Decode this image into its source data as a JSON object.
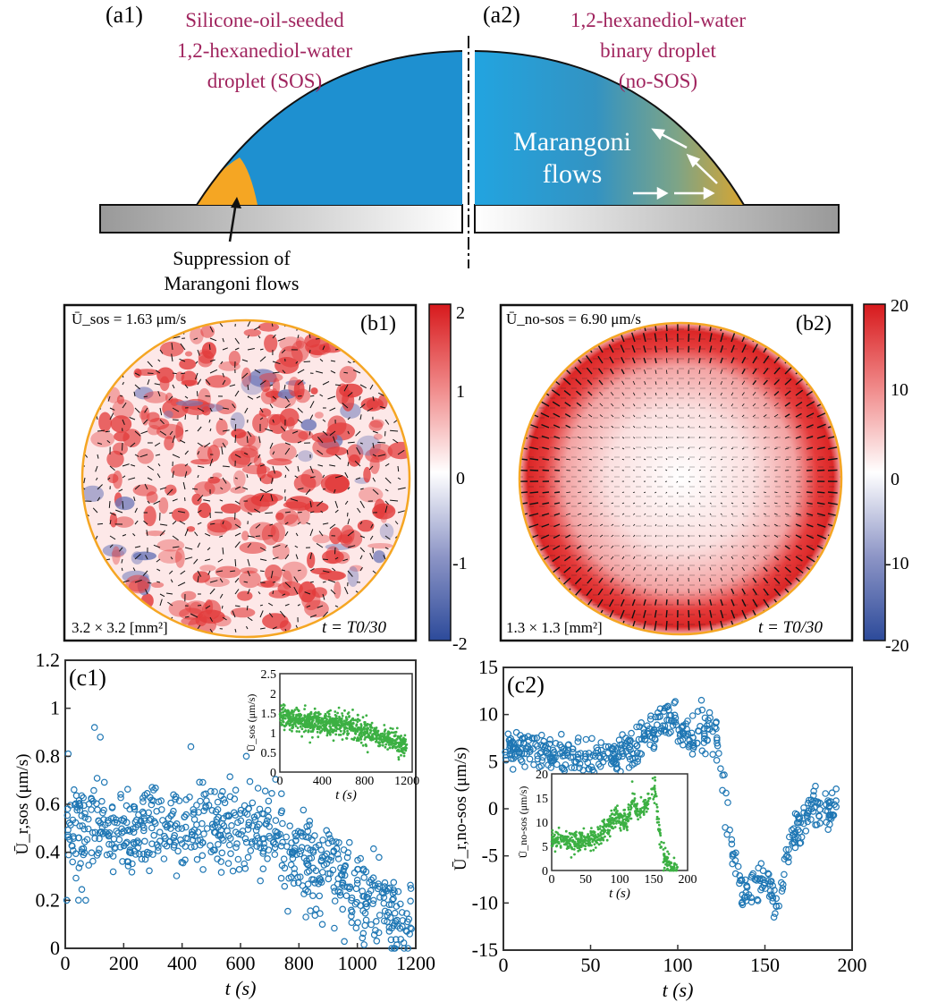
{
  "panel_a": {
    "label_a1": "(a1)",
    "label_a2": "(a2)",
    "title_a1": [
      "Silicone-oil-seeded",
      "1,2-hexanediol-water",
      "droplet (SOS)"
    ],
    "title_a2": [
      "1,2-hexanediol-water",
      "binary droplet",
      "(no-SOS)"
    ],
    "marangoni_label": [
      "Marangoni",
      "flows"
    ],
    "suppression_label": [
      "Suppression of",
      "Marangoni flows"
    ]
  },
  "panel_b1": {
    "label": "(b1)",
    "mean_velocity": "Ū_sos = 1.63 μm/s",
    "area": "3.2 × 3.2 [mm²]",
    "time": "t = T0/30",
    "colorbar_ticks": [
      "2",
      "1",
      "0",
      "-1",
      "-2"
    ]
  },
  "panel_b2": {
    "label": "(b2)",
    "mean_velocity": "Ū_no-sos = 6.90 μm/s",
    "area": "1.3 × 1.3 [mm²]",
    "time": "t = T0/30",
    "colorbar_ticks": [
      "20",
      "10",
      "0",
      "-10",
      "-20"
    ]
  },
  "colors": {
    "drop_blue": "#1e90d0",
    "drop_orange": "#f5a623",
    "contact_line": "#f5a623",
    "title_purple": "#a0245e",
    "marker_blue": "#1f77b4",
    "marker_green": "#3cb043",
    "colorbar_red": "#d7191c",
    "colorbar_blue": "#2c4a9a"
  },
  "chart_data": [
    {
      "id": "c1",
      "type": "scatter",
      "label": "(c1)",
      "xlabel": "t (s)",
      "ylabel": "Ū_r,sos (μm/s)",
      "xlim": [
        0,
        1200
      ],
      "ylim": [
        0,
        1.2
      ],
      "xticks": [
        "0",
        "200",
        "400",
        "600",
        "800",
        "1000",
        "1200"
      ],
      "yticks": [
        "0",
        "0.2",
        "0.4",
        "0.6",
        "0.8",
        "1",
        "1.2"
      ],
      "series": [
        {
          "trend": [
            [
              0,
              0.5
            ],
            [
              200,
              0.5
            ],
            [
              400,
              0.48
            ],
            [
              600,
              0.52
            ],
            [
              700,
              0.48
            ],
            [
              800,
              0.38
            ],
            [
              900,
              0.32
            ],
            [
              1000,
              0.22
            ],
            [
              1100,
              0.15
            ],
            [
              1180,
              0.07
            ]
          ],
          "spread": 0.09,
          "n": 700
        }
      ],
      "outliers": [
        [
          100,
          0.92
        ],
        [
          120,
          0.88
        ],
        [
          10,
          0.81
        ],
        [
          430,
          0.84
        ],
        [
          5,
          0.2
        ],
        [
          620,
          0.8
        ],
        [
          880,
          0.1
        ],
        [
          70,
          0.2
        ]
      ],
      "inset": {
        "xlabel": "t (s)",
        "ylabel": "Ū_sos (μm/s)",
        "xlim": [
          0,
          1250
        ],
        "ylim": [
          0,
          2.5
        ],
        "xticks": [
          "0",
          "400",
          "800",
          "1200"
        ],
        "yticks": [
          "0",
          "0.5",
          "1",
          "1.5",
          "2",
          "2.5"
        ],
        "trend": [
          [
            0,
            1.5
          ],
          [
            100,
            1.35
          ],
          [
            300,
            1.25
          ],
          [
            550,
            1.25
          ],
          [
            700,
            1.1
          ],
          [
            900,
            0.95
          ],
          [
            1100,
            0.75
          ],
          [
            1200,
            0.62
          ]
        ],
        "spread": 0.15,
        "n": 900
      }
    },
    {
      "id": "c2",
      "type": "scatter",
      "label": "(c2)",
      "xlabel": "t (s)",
      "ylabel": "Ū_r,no-sos (μm/s)",
      "xlim": [
        0,
        200
      ],
      "ylim": [
        -15,
        15
      ],
      "xticks": [
        "0",
        "50",
        "100",
        "150",
        "200"
      ],
      "yticks": [
        "-15",
        "-10",
        "-5",
        "0",
        "5",
        "10",
        "15"
      ],
      "series": [
        {
          "trend": [
            [
              0,
              6.5
            ],
            [
              20,
              6.0
            ],
            [
              40,
              5.2
            ],
            [
              60,
              5.5
            ],
            [
              75,
              6.5
            ],
            [
              85,
              8.0
            ],
            [
              92,
              9.5
            ],
            [
              100,
              9.0
            ],
            [
              105,
              7.5
            ],
            [
              110,
              7.5
            ],
            [
              118,
              8.5
            ],
            [
              122,
              8.0
            ],
            [
              128,
              0
            ],
            [
              132,
              -5
            ],
            [
              138,
              -9.5
            ],
            [
              145,
              -7.5
            ],
            [
              152,
              -8.0
            ],
            [
              158,
              -11
            ],
            [
              162,
              -5
            ],
            [
              168,
              -2
            ],
            [
              175,
              -0.3
            ],
            [
              190,
              0
            ]
          ],
          "spread": 1.0,
          "n": 550
        }
      ],
      "inset": {
        "xlabel": "t (s)",
        "ylabel": "Ū_no-sos (μm/s)",
        "xlim": [
          0,
          200
        ],
        "ylim": [
          0,
          20
        ],
        "xticks": [
          "0",
          "50",
          "100",
          "150",
          "200"
        ],
        "yticks": [
          "0",
          "5",
          "10",
          "15",
          "20"
        ],
        "trend": [
          [
            0,
            6.5
          ],
          [
            40,
            6.0
          ],
          [
            65,
            6.2
          ],
          [
            80,
            8.5
          ],
          [
            95,
            11.5
          ],
          [
            100,
            10.5
          ],
          [
            110,
            10.0
          ],
          [
            120,
            15.0
          ],
          [
            125,
            12.0
          ],
          [
            135,
            12.5
          ],
          [
            145,
            15.5
          ],
          [
            152,
            17.5
          ],
          [
            158,
            8.0
          ],
          [
            165,
            3.0
          ],
          [
            175,
            1.0
          ],
          [
            185,
            0.5
          ]
        ],
        "spread": 1.1,
        "n": 600
      }
    }
  ]
}
